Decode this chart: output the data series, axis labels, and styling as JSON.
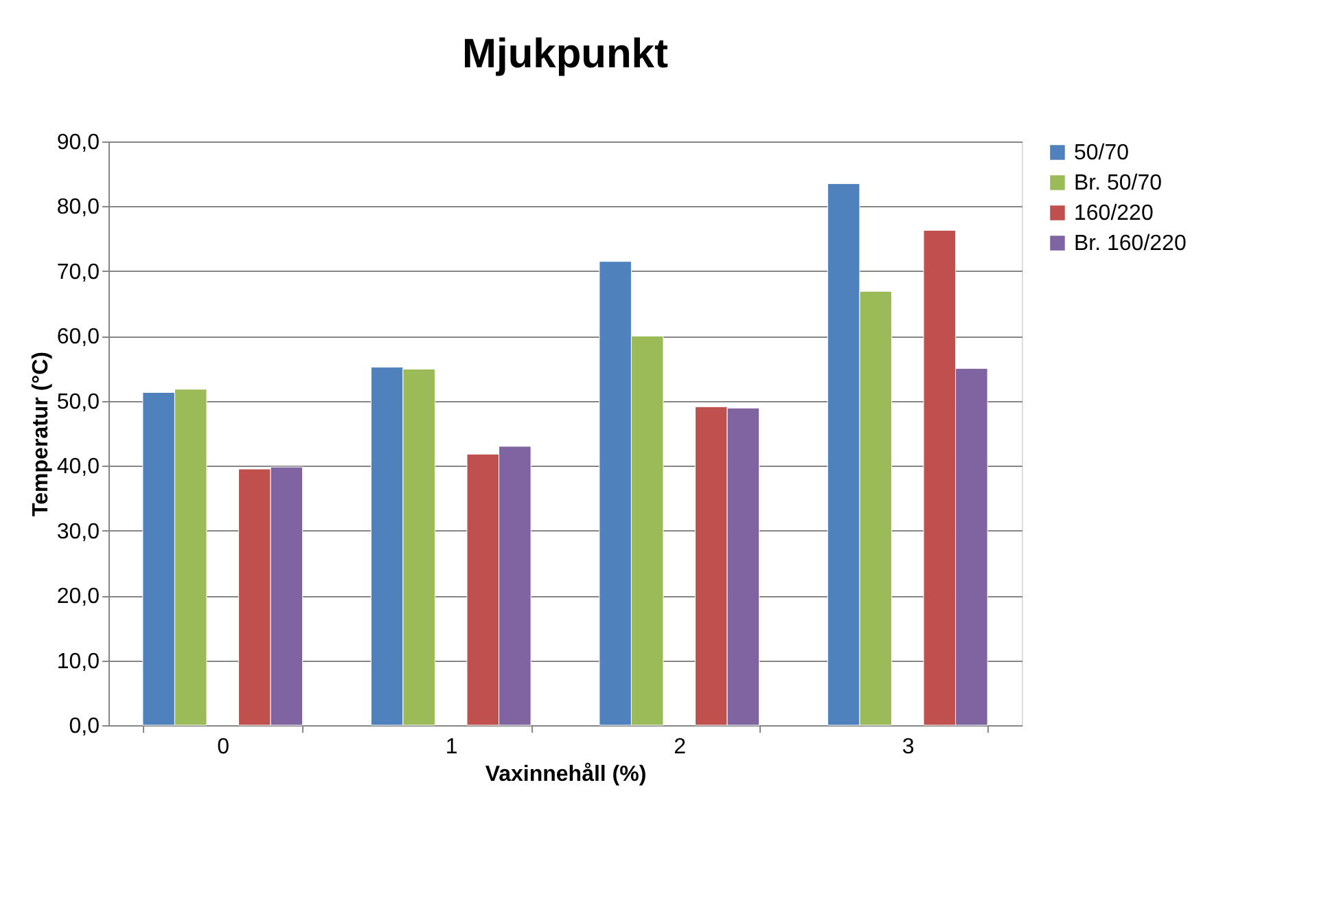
{
  "chart_data": {
    "type": "bar",
    "title": "Mjukpunkt",
    "xlabel": "Vaxinnehåll (%)",
    "ylabel": "Temperatur (°C)",
    "categories": [
      "0",
      "1",
      "2",
      "3"
    ],
    "series": [
      {
        "name": "50/70",
        "color": "#4f81bd",
        "values": [
          51.3,
          55.2,
          71.5,
          83.5
        ]
      },
      {
        "name": "Br. 50/70",
        "color": "#9bbb59",
        "values": [
          51.8,
          54.9,
          60.0,
          66.9
        ]
      },
      {
        "values": [
          null,
          null,
          null,
          null
        ]
      },
      {
        "name": "160/220",
        "color": "#c0504d",
        "values": [
          39.5,
          41.8,
          49.1,
          76.3
        ]
      },
      {
        "name": "Br. 160/220",
        "color": "#8064a2",
        "values": [
          39.8,
          43.0,
          48.9,
          55.0
        ]
      }
    ],
    "ylim": [
      0,
      90
    ],
    "yticks": [
      {
        "value": 0,
        "label": "0,0"
      },
      {
        "value": 10,
        "label": "10,0"
      },
      {
        "value": 20,
        "label": "20,0"
      },
      {
        "value": 30,
        "label": "30,0"
      },
      {
        "value": 40,
        "label": "40,0"
      },
      {
        "value": 50,
        "label": "50,0"
      },
      {
        "value": 60,
        "label": "60,0"
      },
      {
        "value": 70,
        "label": "70,0"
      },
      {
        "value": 80,
        "label": "80,0"
      },
      {
        "value": 90,
        "label": "90,0"
      }
    ],
    "grid": "y",
    "legend": "right"
  }
}
